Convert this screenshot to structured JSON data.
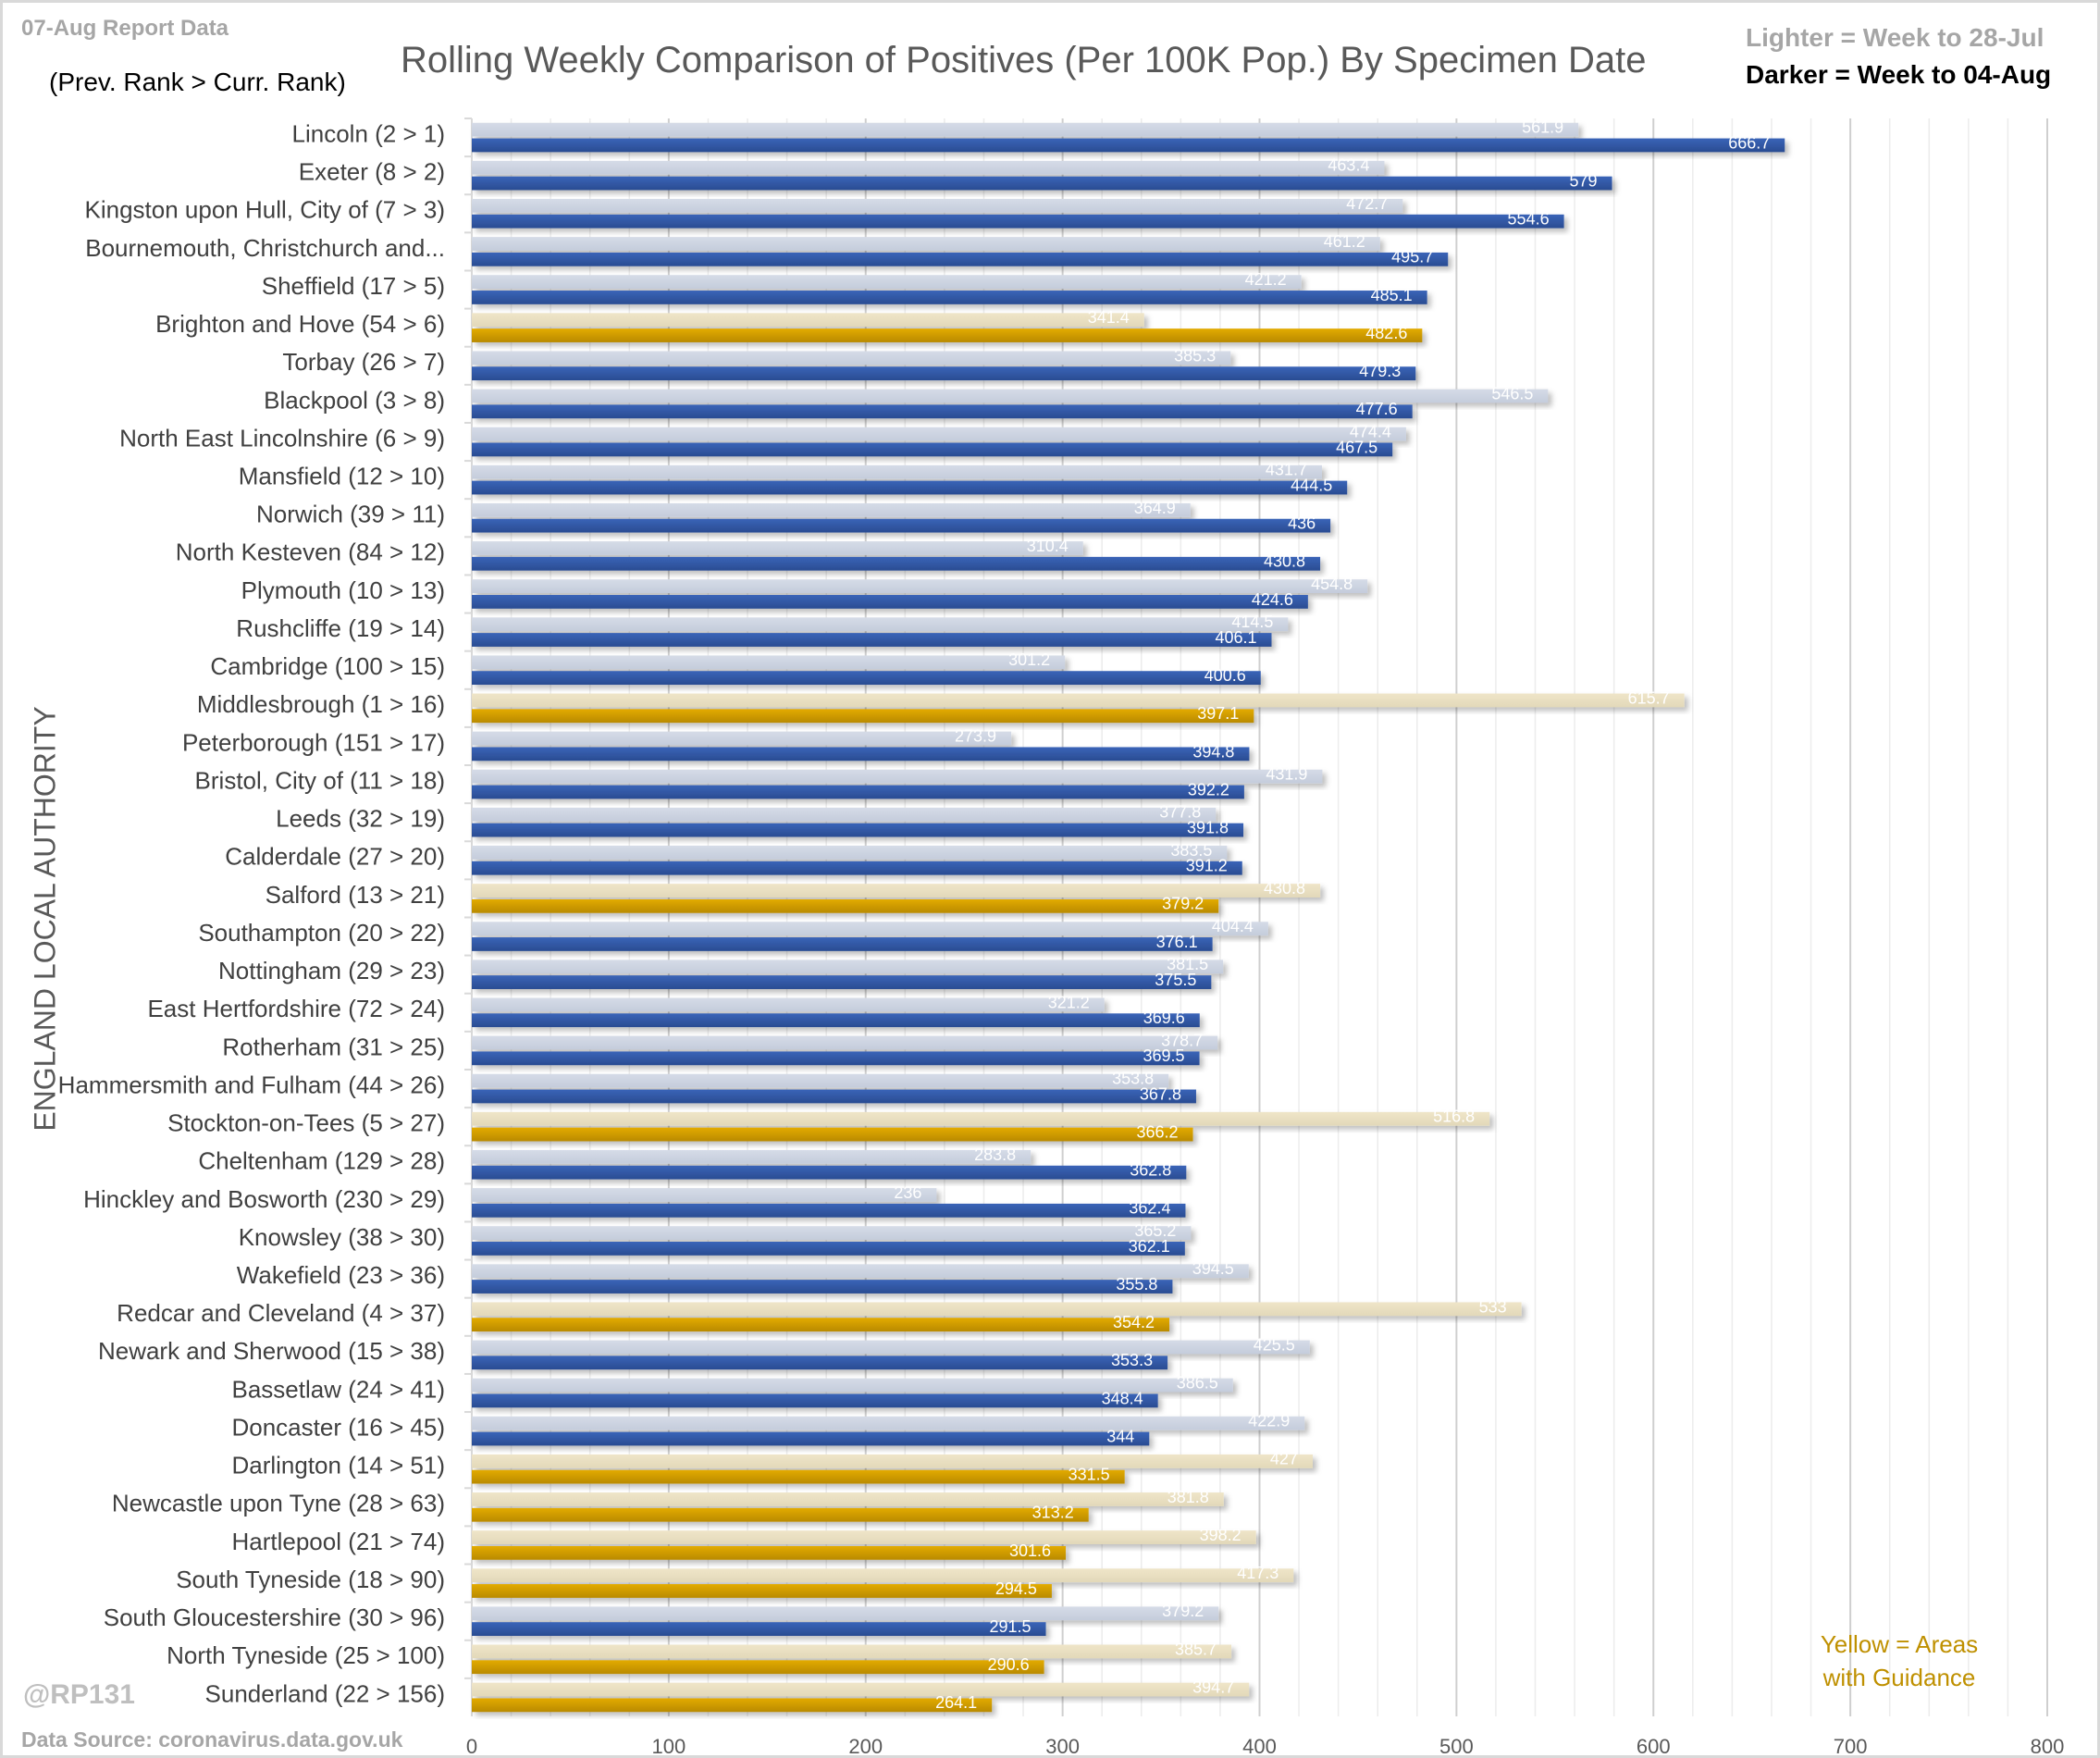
{
  "header": {
    "report_date": "07-Aug Report Data",
    "rank_note": "(Prev. Rank > Curr. Rank)",
    "title": "Rolling Weekly Comparison of Positives  (Per 100K Pop.) By Specimen Date",
    "legend_lighter": "Lighter =  Week to 28-Jul",
    "legend_darker": "Darker =  Week to 04-Aug"
  },
  "footer": {
    "handle": "@RP131",
    "data_source": "Data Source: coronavirus.data.gov.uk",
    "yellow_note_line1": "Yellow = Areas",
    "yellow_note_line2": "with Guidance"
  },
  "colors": {
    "blue_dark": "#2f55a4",
    "blue_light": "#c9d1e0",
    "gold_dark": "#d4a000",
    "gold_light": "#e8dfc2",
    "grid": "#d9d9d9"
  },
  "chart_data": {
    "type": "bar",
    "orientation": "horizontal",
    "title": "Rolling Weekly Comparison of Positives  (Per 100K Pop.) By Specimen Date",
    "xlabel": "",
    "ylabel": "ENGLAND LOCAL AUTHORITY",
    "xlim": [
      0,
      800
    ],
    "xticks": [
      0,
      100,
      200,
      300,
      400,
      500,
      600,
      700,
      800
    ],
    "grid": true,
    "legend": "top-right",
    "categories": [
      "Lincoln (2 > 1)",
      "Exeter (8 > 2)",
      "Kingston upon Hull, City of (7 > 3)",
      "Bournemouth, Christchurch and...",
      "Sheffield (17 > 5)",
      "Brighton and Hove (54 > 6)",
      "Torbay (26 > 7)",
      "Blackpool (3 > 8)",
      "North East Lincolnshire (6 > 9)",
      "Mansfield (12 > 10)",
      "Norwich (39 > 11)",
      "North Kesteven (84 > 12)",
      "Plymouth (10 > 13)",
      "Rushcliffe (19 > 14)",
      "Cambridge (100 > 15)",
      "Middlesbrough (1 > 16)",
      "Peterborough (151 > 17)",
      "Bristol, City of (11 > 18)",
      "Leeds (32 > 19)",
      "Calderdale (27 > 20)",
      "Salford (13 > 21)",
      "Southampton (20 > 22)",
      "Nottingham (29 > 23)",
      "East Hertfordshire (72 > 24)",
      "Rotherham (31 > 25)",
      "Hammersmith and Fulham (44 > 26)",
      "Stockton-on-Tees (5 > 27)",
      "Cheltenham (129 > 28)",
      "Hinckley and Bosworth (230 > 29)",
      "Knowsley (38 > 30)",
      "Wakefield (23 > 36)",
      "Redcar and Cleveland (4 > 37)",
      "Newark and Sherwood (15 > 38)",
      "Bassetlaw (24 > 41)",
      "Doncaster (16 > 45)",
      "Darlington (14 > 51)",
      "Newcastle upon Tyne (28 > 63)",
      "Hartlepool (21 > 74)",
      "South Tyneside (18 > 90)",
      "South Gloucestershire (30 > 96)",
      "North Tyneside (25 > 100)",
      "Sunderland (22 > 156)"
    ],
    "guidance_area": [
      false,
      false,
      false,
      false,
      false,
      true,
      false,
      false,
      false,
      false,
      false,
      false,
      false,
      false,
      false,
      true,
      false,
      false,
      false,
      false,
      true,
      false,
      false,
      false,
      false,
      false,
      true,
      false,
      false,
      false,
      false,
      true,
      false,
      false,
      false,
      true,
      true,
      true,
      true,
      false,
      true,
      true
    ],
    "series": [
      {
        "name": "Week to 28-Jul",
        "shade": "lighter",
        "values": [
          561.9,
          463.4,
          472.7,
          461.2,
          421.2,
          341.4,
          385.3,
          546.5,
          474.4,
          431.7,
          364.9,
          310.4,
          454.8,
          414.5,
          301.2,
          615.7,
          273.9,
          431.9,
          377.8,
          383.5,
          430.8,
          404.4,
          381.5,
          321.2,
          378.7,
          353.8,
          516.8,
          283.8,
          236,
          365.2,
          394.5,
          533,
          425.5,
          386.5,
          422.9,
          427,
          381.8,
          398.2,
          417.3,
          379.2,
          385.7,
          394.7
        ]
      },
      {
        "name": "Week to 04-Aug",
        "shade": "darker",
        "values": [
          666.7,
          579,
          554.6,
          495.7,
          485.1,
          482.6,
          479.3,
          477.6,
          467.5,
          444.5,
          436,
          430.8,
          424.6,
          406.1,
          400.6,
          397.1,
          394.8,
          392.2,
          391.8,
          391.2,
          379.2,
          376.1,
          375.5,
          369.6,
          369.5,
          367.8,
          366.2,
          362.8,
          362.4,
          362.1,
          355.8,
          354.2,
          353.3,
          348.4,
          344,
          331.5,
          313.2,
          301.6,
          294.5,
          291.5,
          290.6,
          264.1
        ]
      }
    ]
  }
}
